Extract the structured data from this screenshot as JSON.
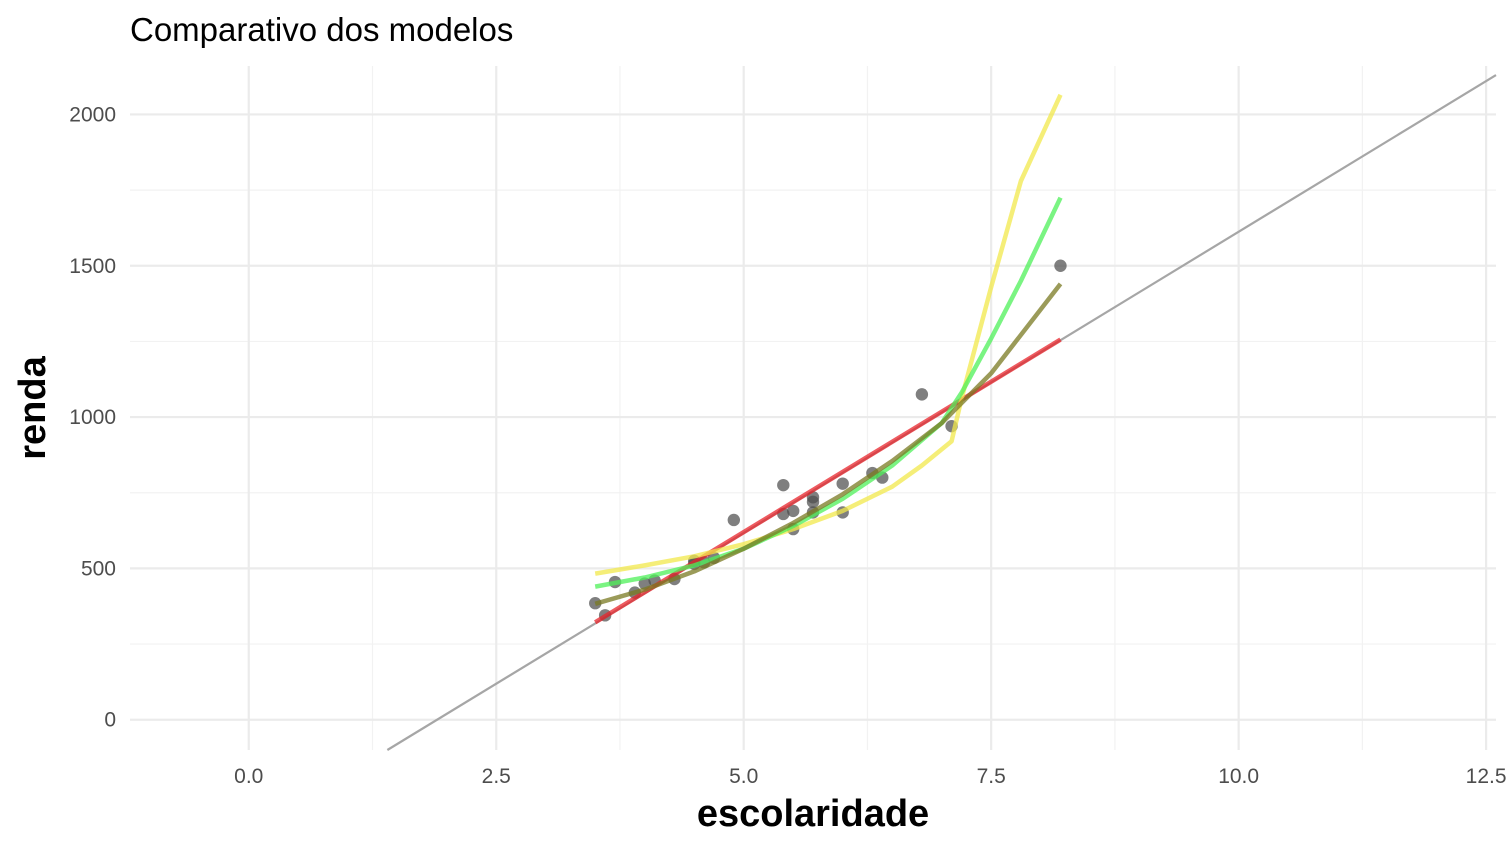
{
  "chart_data": {
    "type": "scatter",
    "title": "Comparativo dos modelos",
    "xlabel": "escolaridade",
    "ylabel": "renda",
    "xlim": [
      -1.2,
      12.6
    ],
    "ylim": [
      -100,
      2160
    ],
    "x_ticks": [
      0,
      2.5,
      5,
      7.5,
      10,
      12.5
    ],
    "x_tick_labels": [
      "0.0",
      "2.5",
      "5.0",
      "7.5",
      "10.0",
      "12.5"
    ],
    "y_ticks": [
      0,
      500,
      1000,
      1500,
      2000
    ],
    "y_tick_labels": [
      "0",
      "500",
      "1000",
      "1500",
      "2000"
    ],
    "grid": true,
    "points": {
      "color": "#4d4d4d",
      "x": [
        3.5,
        3.6,
        3.7,
        3.9,
        4.0,
        4.1,
        4.3,
        4.5,
        4.5,
        4.6,
        4.7,
        4.9,
        5.4,
        5.4,
        5.5,
        5.5,
        5.7,
        5.7,
        5.7,
        6.0,
        6.0,
        6.3,
        6.4,
        6.8,
        7.1,
        8.2
      ],
      "y": [
        385,
        345,
        455,
        420,
        450,
        460,
        465,
        525,
        515,
        520,
        535,
        660,
        775,
        680,
        690,
        630,
        720,
        735,
        685,
        780,
        685,
        815,
        800,
        1075,
        970,
        1500
      ]
    },
    "reference_line": {
      "color": "#a6a6a6",
      "x": [
        1.4,
        12.6
      ],
      "y": [
        -100,
        2130
      ]
    },
    "series": [
      {
        "color": "#e8242b",
        "x": [
          3.5,
          8.2
        ],
        "y": [
          322,
          1256
        ]
      },
      {
        "color": "#f2e84b",
        "x": [
          3.5,
          4.0,
          4.5,
          5.0,
          5.5,
          6.0,
          6.5,
          6.8,
          7.1,
          7.2,
          7.5,
          7.8,
          8.2
        ],
        "y": [
          483,
          510,
          540,
          580,
          630,
          690,
          770,
          840,
          920,
          1060,
          1430,
          1780,
          2065
        ]
      },
      {
        "color": "#4ef058",
        "x": [
          3.5,
          4.0,
          4.5,
          5.0,
          5.5,
          6.0,
          6.5,
          7.0,
          7.2,
          7.5,
          7.8,
          8.2
        ],
        "y": [
          440,
          470,
          510,
          565,
          640,
          730,
          840,
          980,
          1080,
          1260,
          1450,
          1725
        ]
      },
      {
        "color": "#7a7a22",
        "x": [
          3.5,
          4.0,
          4.5,
          5.0,
          5.5,
          6.0,
          6.5,
          7.0,
          7.5,
          8.2
        ],
        "y": [
          383,
          430,
          490,
          565,
          650,
          745,
          855,
          980,
          1145,
          1440
        ]
      }
    ]
  }
}
